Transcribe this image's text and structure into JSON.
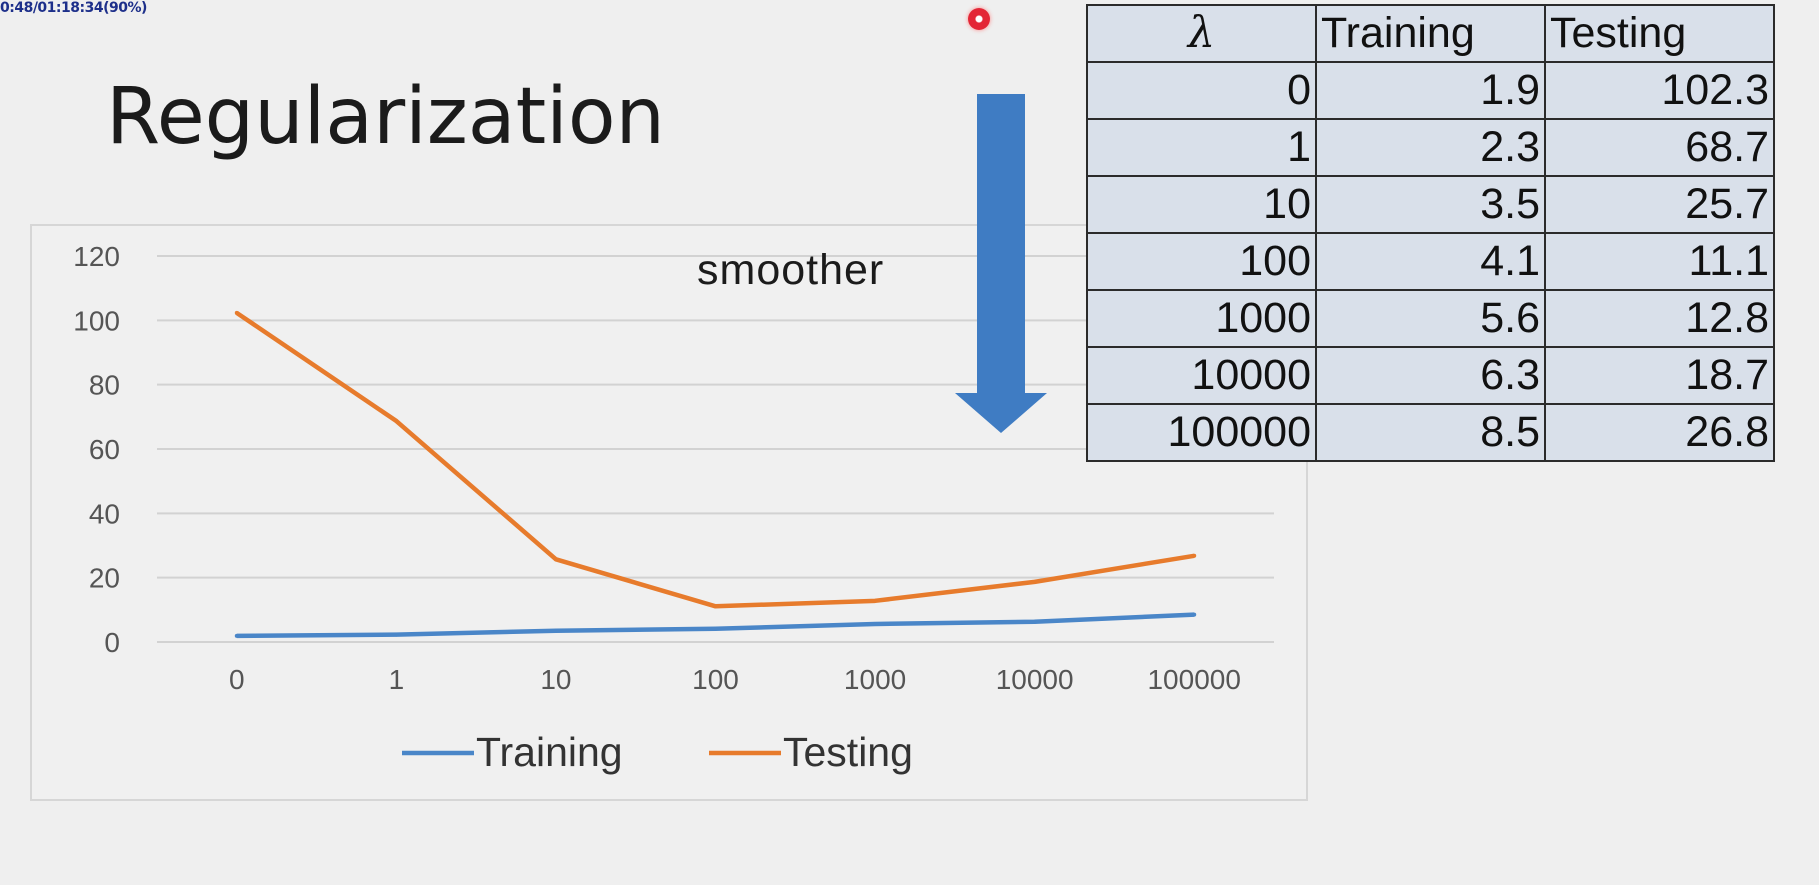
{
  "overlay": {
    "time_text": "0:48/01:18:34(90%)"
  },
  "slide": {
    "title": "Regularization",
    "annotation": "smoother"
  },
  "colors": {
    "training": "#4a86c8",
    "testing": "#e77b2c",
    "arrow": "#3f7cc3",
    "table_fill": "#d9e0ea"
  },
  "table": {
    "headers": [
      "λ",
      "Training",
      "Testing"
    ],
    "rows": [
      [
        "0",
        "1.9",
        "102.3"
      ],
      [
        "1",
        "2.3",
        "68.7"
      ],
      [
        "10",
        "3.5",
        "25.7"
      ],
      [
        "100",
        "4.1",
        "11.1"
      ],
      [
        "1000",
        "5.6",
        "12.8"
      ],
      [
        "10000",
        "6.3",
        "18.7"
      ],
      [
        "100000",
        "8.5",
        "26.8"
      ]
    ]
  },
  "chart_data": {
    "type": "line",
    "categories": [
      "0",
      "1",
      "10",
      "100",
      "1000",
      "10000",
      "100000"
    ],
    "series": [
      {
        "name": "Training",
        "values": [
          1.9,
          2.3,
          3.5,
          4.1,
          5.6,
          6.3,
          8.5
        ]
      },
      {
        "name": "Testing",
        "values": [
          102.3,
          68.7,
          25.7,
          11.1,
          12.8,
          18.7,
          26.8
        ]
      }
    ],
    "yticks": [
      "0",
      "20",
      "40",
      "60",
      "80",
      "100",
      "120"
    ],
    "ylim": [
      0,
      120
    ],
    "grid": true,
    "legend": "bottom",
    "title": "",
    "xlabel": "",
    "ylabel": ""
  }
}
